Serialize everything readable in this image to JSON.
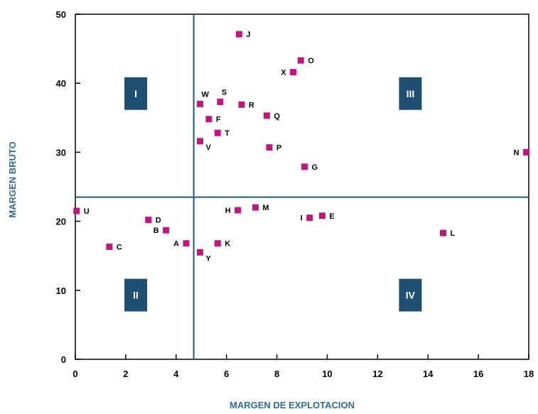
{
  "chart_data": {
    "type": "scatter",
    "title": "",
    "xlabel": "MARGEN DE EXPLOTACION",
    "ylabel": "MARGEN BRUTO",
    "xlim": [
      0,
      18
    ],
    "ylim": [
      0,
      50
    ],
    "x_ticks": [
      "0",
      "2",
      "4",
      "6",
      "8",
      "10",
      "12",
      "14",
      "16",
      "18"
    ],
    "y_ticks": [
      "0",
      "10",
      "20",
      "30",
      "40",
      "50"
    ],
    "grid": false,
    "divider_x": 4.7,
    "divider_y": 23.5,
    "quadrants": [
      {
        "label": "I",
        "x": 2.4,
        "y": 38.5
      },
      {
        "label": "II",
        "x": 2.4,
        "y": 9.3
      },
      {
        "label": "III",
        "x": 13.3,
        "y": 38.5
      },
      {
        "label": "IV",
        "x": 13.3,
        "y": 9.3
      }
    ],
    "points": [
      {
        "label": "A",
        "x": 4.4,
        "y": 16.8,
        "side": "left"
      },
      {
        "label": "B",
        "x": 3.6,
        "y": 18.7,
        "side": "left"
      },
      {
        "label": "C",
        "x": 1.35,
        "y": 16.3,
        "side": "right"
      },
      {
        "label": "D",
        "x": 2.9,
        "y": 20.2,
        "side": "right"
      },
      {
        "label": "E",
        "x": 9.8,
        "y": 20.8,
        "side": "right"
      },
      {
        "label": "F",
        "x": 5.3,
        "y": 34.8,
        "side": "right"
      },
      {
        "label": "G",
        "x": 9.1,
        "y": 27.9,
        "side": "right"
      },
      {
        "label": "H",
        "x": 6.45,
        "y": 21.6,
        "side": "left"
      },
      {
        "label": "I",
        "x": 9.3,
        "y": 20.5,
        "side": "left"
      },
      {
        "label": "J",
        "x": 6.5,
        "y": 47.1,
        "side": "right"
      },
      {
        "label": "K",
        "x": 5.65,
        "y": 16.8,
        "side": "right"
      },
      {
        "label": "L",
        "x": 14.6,
        "y": 18.3,
        "side": "right"
      },
      {
        "label": "M",
        "x": 7.15,
        "y": 22.0,
        "side": "right"
      },
      {
        "label": "N",
        "x": 17.9,
        "y": 30.0,
        "side": "left"
      },
      {
        "label": "O",
        "x": 8.95,
        "y": 43.3,
        "side": "right"
      },
      {
        "label": "P",
        "x": 7.7,
        "y": 30.7,
        "side": "right"
      },
      {
        "label": "Q",
        "x": 7.6,
        "y": 35.3,
        "side": "right"
      },
      {
        "label": "R",
        "x": 6.6,
        "y": 36.9,
        "side": "right"
      },
      {
        "label": "S",
        "x": 5.75,
        "y": 37.3,
        "side": "above"
      },
      {
        "label": "T",
        "x": 5.65,
        "y": 32.8,
        "side": "right"
      },
      {
        "label": "U",
        "x": 0.05,
        "y": 21.5,
        "side": "right"
      },
      {
        "label": "V",
        "x": 4.95,
        "y": 31.6,
        "side": "right-below"
      },
      {
        "label": "W",
        "x": 4.95,
        "y": 37.0,
        "side": "above"
      },
      {
        "label": "X",
        "x": 8.65,
        "y": 41.6,
        "side": "left"
      },
      {
        "label": "Y",
        "x": 4.95,
        "y": 15.5,
        "side": "right-below"
      }
    ]
  },
  "colors": {
    "marker": "#c2157f",
    "divider": "#1f5b7a",
    "quadrant_box": "#1f4f72",
    "axis_title": "#2a6f93",
    "frame": "#000000"
  }
}
